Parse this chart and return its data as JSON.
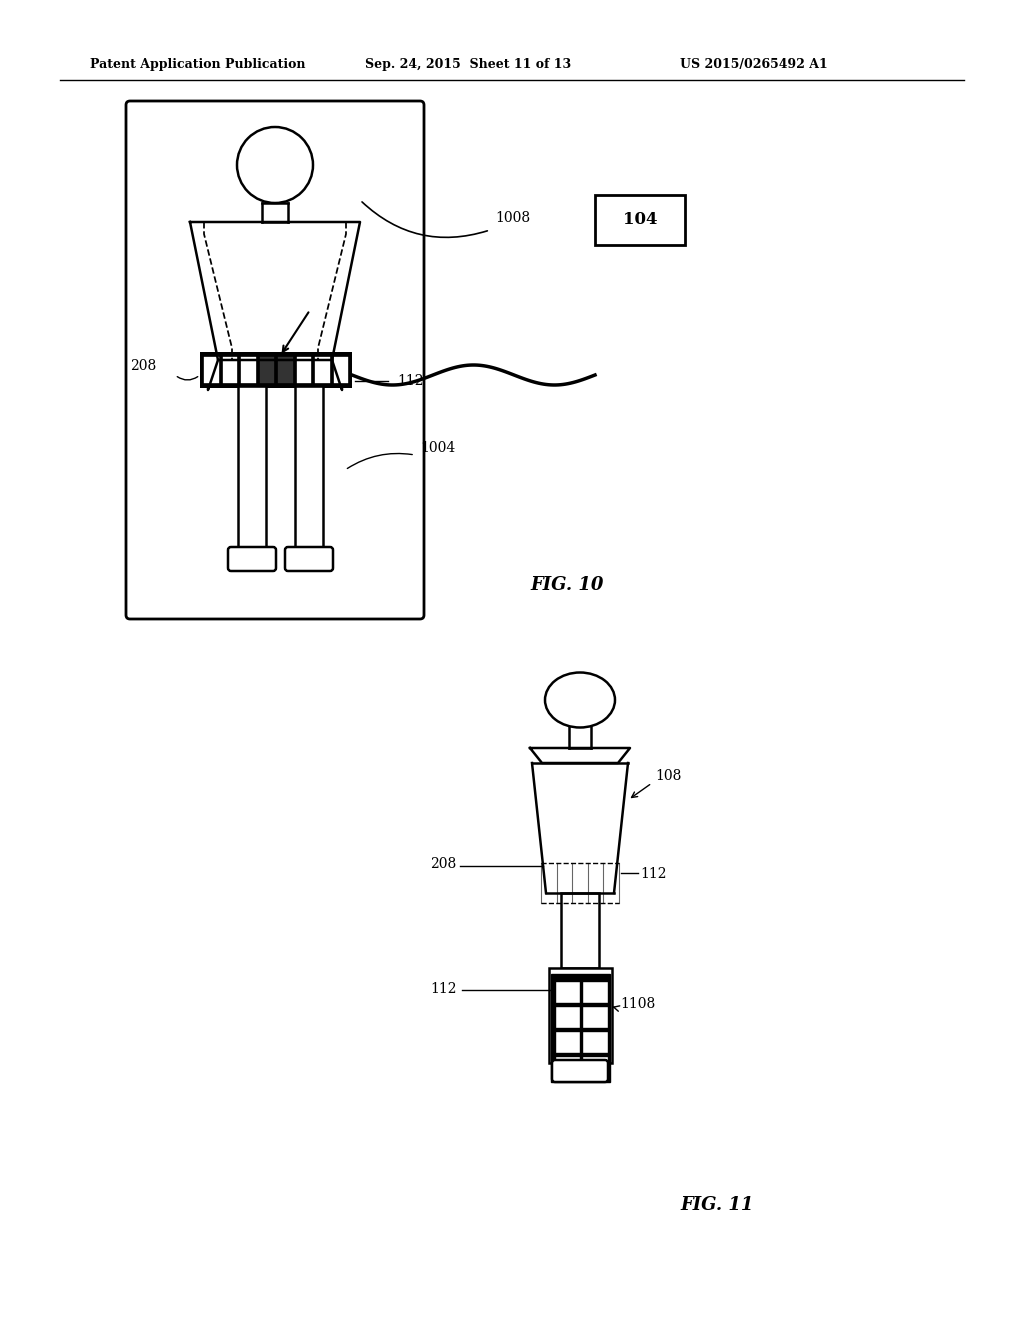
{
  "bg_color": "#ffffff",
  "line_color": "#000000",
  "header_left": "Patent Application Publication",
  "header_mid": "Sep. 24, 2015  Sheet 11 of 13",
  "header_right": "US 2015/0265492 A1",
  "fig10_label": "FIG. 10",
  "fig11_label": "FIG. 11",
  "label_208_fig10": "208",
  "label_112_fig10": "112",
  "label_1004_fig10": "1004",
  "label_1008_fig10": "1008",
  "label_104_fig10": "104",
  "label_208_fig11": "208",
  "label_112_fig11a": "112",
  "label_112_fig11b": "112",
  "label_108_fig11": "108",
  "label_1108_fig11": "1108"
}
